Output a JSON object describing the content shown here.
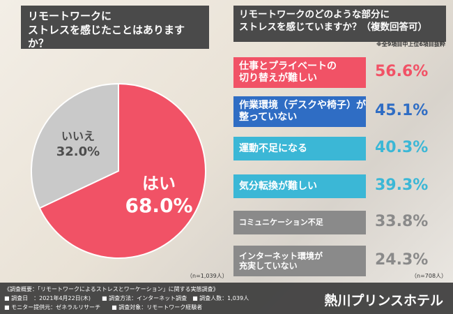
{
  "chart_data": [
    {
      "type": "pie",
      "title": "リモートワークに\nストレスを感じたことはありますか？",
      "categories": [
        "はい",
        "いいえ"
      ],
      "values": [
        68.0,
        32.0
      ],
      "value_labels": [
        "68.0%",
        "32.0%"
      ],
      "colors": [
        "#f15266",
        "#c9c9c9"
      ],
      "label_colors": [
        "#ffffff",
        "#4d4d4d"
      ],
      "note": "（n=1,039人）"
    },
    {
      "type": "list",
      "title": "リモートワークのどのような部分に\nストレスを感じていますか？（複数回答可）",
      "subtitle": "※全9項目中上位6項目抜粋",
      "categories": [
        "仕事とプライベートの\n切り替えが難しい",
        "作業環境（デスクや椅子）が\n整っていない",
        "運動不足になる",
        "気分転換が難しい",
        "コミュニケーション不足",
        "インターネット環境が\n充実していない"
      ],
      "values": [
        56.6,
        45.1,
        40.3,
        39.3,
        33.8,
        24.3
      ],
      "value_labels": [
        "56.6%",
        "45.1%",
        "40.3%",
        "39.3%",
        "33.8%",
        "24.3%"
      ],
      "colors": [
        "#f15266",
        "#2f6dc4",
        "#3bb7d6",
        "#3bb7d6",
        "#8a8a8a",
        "#8a8a8a"
      ],
      "note": "（n=708人）"
    }
  ],
  "footer": {
    "lines": [
      "《調査概要：「リモートワークによるストレスとワーケーション」に関する実態調査》",
      "■ 調査日　：2021年4月22日(木)　　■ 調査方法：インターネット調査　■ 調査人数：1,039人",
      "■ モニター提供元：ゼネラルリサーチ　　■ 調査対象：リモートワーク経験者"
    ],
    "brand": "熱川プリンスホテル"
  }
}
